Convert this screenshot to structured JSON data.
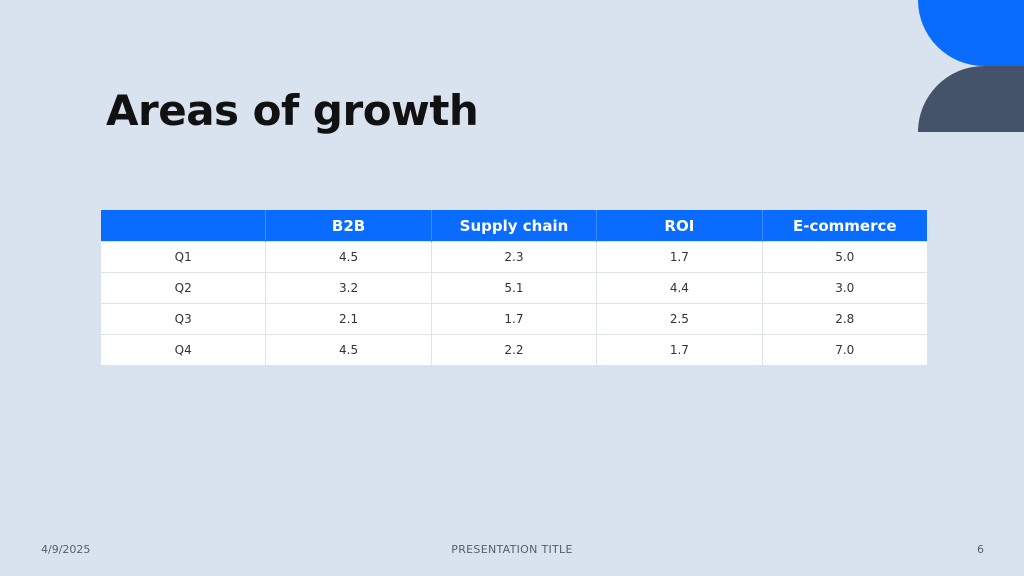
{
  "slide": {
    "title": "Areas of growth"
  },
  "colors": {
    "background": "#d9e3ef",
    "accent_blue": "#0a6cff",
    "accent_slate": "#44526a",
    "header_text": "#ffffff",
    "body_text": "#333333"
  },
  "table": {
    "headers": [
      "",
      "B2B",
      "Supply chain",
      "ROI",
      "E-commerce"
    ],
    "rows": [
      [
        "Q1",
        "4.5",
        "2.3",
        "1.7",
        "5.0"
      ],
      [
        "Q2",
        "3.2",
        "5.1",
        "4.4",
        "3.0"
      ],
      [
        "Q3",
        "2.1",
        "1.7",
        "2.5",
        "2.8"
      ],
      [
        "Q4",
        "4.5",
        "2.2",
        "1.7",
        "7.0"
      ]
    ]
  },
  "footer": {
    "date": "4/9/2025",
    "title": "PRESENTATION TITLE",
    "page": "6"
  }
}
